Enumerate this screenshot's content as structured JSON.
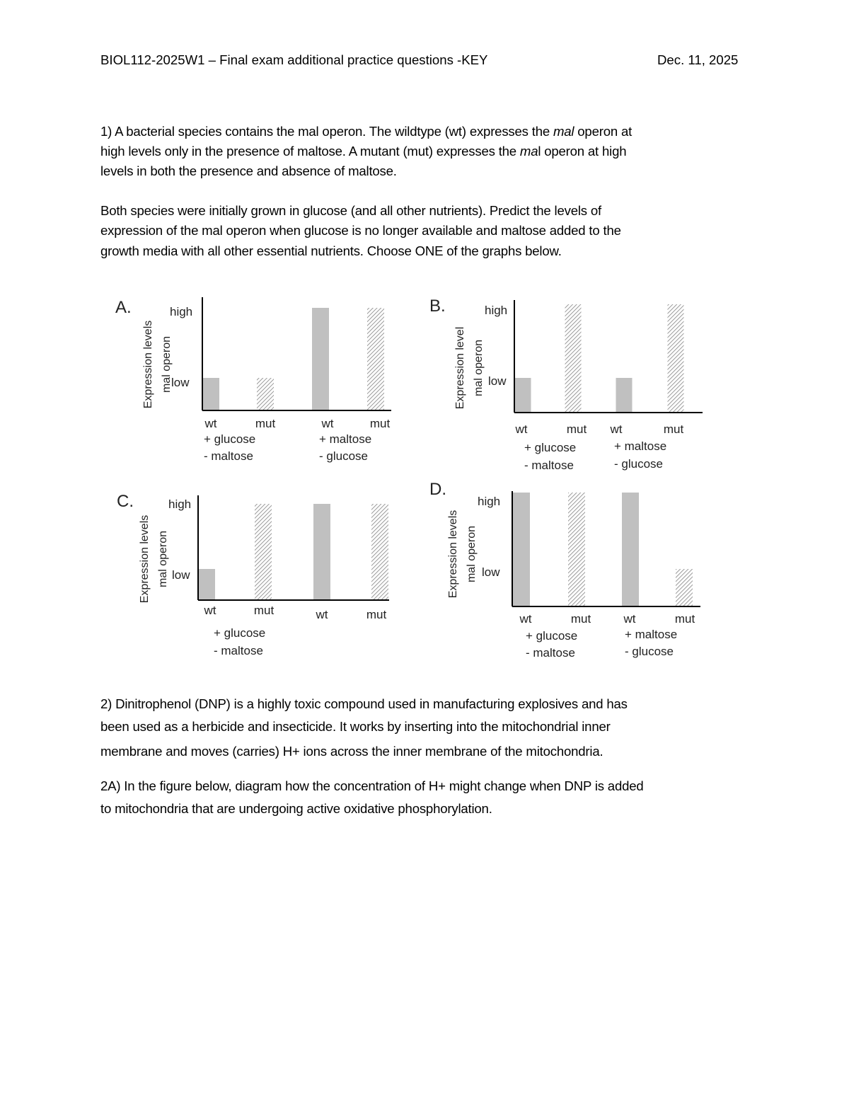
{
  "header": {
    "title": "BIOL112-2025W1 – Final exam additional practice questions -KEY",
    "date": "Dec. 11, 2025"
  },
  "q1": {
    "lines": [
      [
        "1) A bacterial species contains the mal operon.  The wildtype (wt) expresses the ",
        "mal",
        " operon at"
      ],
      [
        "high levels only in the presence of maltose.  A mutant (mut) expresses the ",
        "ma",
        "l operon at high"
      ],
      [
        "levels in both the presence and absence of maltose.",
        "",
        ""
      ]
    ],
    "para2": [
      "Both species were initially grown in glucose (and all other nutrients).  Predict the levels of",
      "expression of the mal operon when glucose is no longer available and maltose added to the",
      "growth media with all other essential nutrients.   Choose ONE of the graphs below."
    ]
  },
  "chart_data": [
    {
      "type": "bar",
      "label": "A.",
      "ylabel": [
        "Expression levels",
        "mal operon"
      ],
      "yticks": [
        "high",
        "low"
      ],
      "categories": [
        "wt",
        "mut",
        "wt",
        "mut"
      ],
      "groups": [
        [
          "+ glucose",
          "- maltose"
        ],
        [
          "+  maltose",
          "- glucose"
        ]
      ],
      "values": [
        "low",
        "low",
        "high",
        "high"
      ],
      "fills": [
        "solid",
        "hatched",
        "solid",
        "hatched"
      ]
    },
    {
      "type": "bar",
      "label": "B.",
      "ylabel": [
        "Expression level",
        "mal operon"
      ],
      "yticks": [
        "high",
        "low"
      ],
      "categories": [
        "wt",
        "mut",
        "wt",
        "mut"
      ],
      "groups": [
        [
          "+ glucose",
          "- maltose"
        ],
        [
          "+  maltose",
          "- glucose"
        ]
      ],
      "values": [
        "low",
        "high",
        "low",
        "high"
      ],
      "fills": [
        "solid",
        "hatched",
        "solid",
        "hatched"
      ]
    },
    {
      "type": "bar",
      "label": "C.",
      "ylabel": [
        "Expression levels",
        "mal operon"
      ],
      "yticks": [
        "high",
        "low"
      ],
      "categories": [
        "wt",
        "mut",
        "wt",
        "mut"
      ],
      "groups": [
        [
          "+ glucose",
          "- maltose"
        ],
        []
      ],
      "values": [
        "low",
        "high",
        "high",
        "high"
      ],
      "fills": [
        "solid",
        "hatched",
        "solid",
        "hatched"
      ]
    },
    {
      "type": "bar",
      "label": "D.",
      "ylabel": [
        "Expression levels",
        "mal operon"
      ],
      "yticks": [
        "high",
        "low"
      ],
      "categories": [
        "wt",
        "mut",
        "wt",
        "mut"
      ],
      "groups": [
        [
          "+ glucose",
          "- maltose"
        ],
        [
          "+  maltose",
          "- glucose"
        ]
      ],
      "values": [
        "high",
        "high",
        "high",
        "low"
      ],
      "fills": [
        "solid",
        "hatched",
        "solid",
        "hatched"
      ]
    }
  ],
  "colors": {
    "bar": "#c0c0c0",
    "hatch": "#9a9a9a"
  },
  "q2": {
    "lines": [
      "2) Dinitrophenol (DNP) is a highly toxic compound used in manufacturing explosives and has",
      "been used as a herbicide and insecticide.  It works by inserting into the mitochondrial inner",
      "membrane and moves (carries) H+ ions across the inner membrane of the mitochondria."
    ],
    "a_lines": [
      "2A) In the figure below, diagram how the concentration of H+ might change when DNP is added",
      "to mitochondria that are undergoing active oxidative phosphorylation."
    ]
  }
}
